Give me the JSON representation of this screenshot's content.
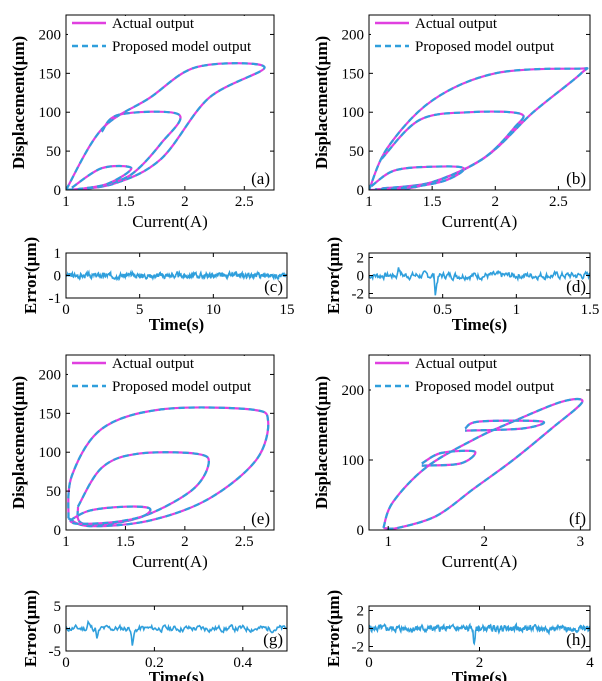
{
  "panels": [
    {
      "id": "a",
      "kind": "hysteresis",
      "tag": "(a)",
      "xlabel": "Current(A)",
      "ylabel": "Displacement(μm)",
      "xlim": [
        1,
        2.75
      ],
      "ylim": [
        0,
        225
      ],
      "xticks": [
        {
          "v": 1,
          "t": "1"
        },
        {
          "v": 1.5,
          "t": "1.5"
        },
        {
          "v": 2,
          "t": "2"
        },
        {
          "v": 2.5,
          "t": "2.5"
        }
      ],
      "yticks": [
        {
          "v": 0,
          "t": "0"
        },
        {
          "v": 50,
          "t": "50"
        },
        {
          "v": 100,
          "t": "100"
        },
        {
          "v": 150,
          "t": "150"
        },
        {
          "v": 200,
          "t": "200"
        }
      ],
      "legend": [
        "Actual output",
        "Proposed model output"
      ],
      "loops": [
        [
          [
            1,
            0
          ],
          [
            1.3,
            78
          ],
          [
            1.7,
            118
          ],
          [
            2.1,
            158
          ],
          [
            2.67,
            158
          ],
          [
            2.2,
            118
          ],
          [
            1.8,
            40
          ],
          [
            1.4,
            8
          ],
          [
            1,
            0
          ]
        ],
        [
          [
            1.3,
            75
          ],
          [
            1.45,
            97
          ],
          [
            1.95,
            97
          ],
          [
            1.8,
            60
          ],
          [
            1.55,
            20
          ],
          [
            1.3,
            5
          ]
        ],
        [
          [
            1.05,
            3
          ],
          [
            1.3,
            28
          ],
          [
            1.55,
            28
          ],
          [
            1.35,
            8
          ],
          [
            1.1,
            1
          ]
        ]
      ]
    },
    {
      "id": "b",
      "kind": "hysteresis",
      "tag": "(b)",
      "xlabel": "Current(A)",
      "ylabel": "Displacement(μm)",
      "xlim": [
        1,
        2.75
      ],
      "ylim": [
        0,
        225
      ],
      "xticks": [
        {
          "v": 1,
          "t": "1"
        },
        {
          "v": 1.5,
          "t": "1.5"
        },
        {
          "v": 2,
          "t": "2"
        },
        {
          "v": 2.5,
          "t": "2.5"
        }
      ],
      "yticks": [
        {
          "v": 0,
          "t": "0"
        },
        {
          "v": 50,
          "t": "50"
        },
        {
          "v": 100,
          "t": "100"
        },
        {
          "v": 150,
          "t": "150"
        },
        {
          "v": 200,
          "t": "200"
        }
      ],
      "legend": [
        "Actual output",
        "Proposed model output"
      ],
      "loops": [
        [
          [
            1,
            0
          ],
          [
            1.15,
            55
          ],
          [
            1.5,
            115
          ],
          [
            2.0,
            150
          ],
          [
            2.65,
            156
          ],
          [
            2.68,
            150
          ],
          [
            2.3,
            100
          ],
          [
            1.9,
            40
          ],
          [
            1.4,
            5
          ],
          [
            1,
            0
          ]
        ],
        [
          [
            1.1,
            40
          ],
          [
            1.4,
            90
          ],
          [
            1.8,
            100
          ],
          [
            2.2,
            98
          ],
          [
            2.15,
            80
          ],
          [
            1.9,
            40
          ],
          [
            1.5,
            10
          ],
          [
            1.1,
            2
          ]
        ],
        [
          [
            1.02,
            5
          ],
          [
            1.2,
            25
          ],
          [
            1.5,
            30
          ],
          [
            1.75,
            28
          ],
          [
            1.6,
            12
          ],
          [
            1.3,
            3
          ],
          [
            1.05,
            1
          ]
        ]
      ]
    },
    {
      "id": "c",
      "kind": "error",
      "tag": "(c)",
      "xlabel": "Time(s)",
      "ylabel": "Error(μm)",
      "xlim": [
        0,
        15
      ],
      "ylim": [
        -1,
        1
      ],
      "xticks": [
        {
          "v": 0,
          "t": "0"
        },
        {
          "v": 5,
          "t": "5"
        },
        {
          "v": 10,
          "t": "10"
        },
        {
          "v": 15,
          "t": "15"
        }
      ],
      "yticks": [
        {
          "v": -1,
          "t": "-1"
        },
        {
          "v": 0,
          "t": "0"
        },
        {
          "v": 1,
          "t": "1"
        }
      ],
      "signal": {
        "n": 600,
        "amp": 0.18,
        "spikes": [],
        "seed": 3
      }
    },
    {
      "id": "d",
      "kind": "error",
      "tag": "(d)",
      "xlabel": "Time(s)",
      "ylabel": "Error(μm)",
      "xlim": [
        0,
        1.5
      ],
      "ylim": [
        -2.5,
        2.5
      ],
      "xticks": [
        {
          "v": 0,
          "t": "0"
        },
        {
          "v": 0.5,
          "t": "0.5"
        },
        {
          "v": 1,
          "t": "1"
        },
        {
          "v": 1.5,
          "t": "1.5"
        }
      ],
      "yticks": [
        {
          "v": -2,
          "t": "-2"
        },
        {
          "v": 0,
          "t": "0"
        },
        {
          "v": 2,
          "t": "2"
        }
      ],
      "signal": {
        "n": 300,
        "amp": 0.6,
        "spikes": [
          [
            0.45,
            -2.2
          ],
          [
            0.2,
            0.9
          ]
        ],
        "seed": 7
      }
    },
    {
      "id": "e",
      "kind": "hysteresis",
      "tag": "(e)",
      "xlabel": "Current(A)",
      "ylabel": "Displacement(μm)",
      "xlim": [
        1,
        2.75
      ],
      "ylim": [
        0,
        225
      ],
      "xticks": [
        {
          "v": 1,
          "t": "1"
        },
        {
          "v": 1.5,
          "t": "1.5"
        },
        {
          "v": 2,
          "t": "2"
        },
        {
          "v": 2.5,
          "t": "2.5"
        }
      ],
      "yticks": [
        {
          "v": 0,
          "t": "0"
        },
        {
          "v": 50,
          "t": "50"
        },
        {
          "v": 100,
          "t": "100"
        },
        {
          "v": 150,
          "t": "150"
        },
        {
          "v": 200,
          "t": "200"
        }
      ],
      "legend": [
        "Actual output",
        "Proposed model output"
      ],
      "loops": [
        [
          [
            1.02,
            15
          ],
          [
            1.05,
            70
          ],
          [
            1.3,
            130
          ],
          [
            1.8,
            155
          ],
          [
            2.55,
            155
          ],
          [
            2.7,
            140
          ],
          [
            2.6,
            90
          ],
          [
            2.2,
            40
          ],
          [
            1.7,
            12
          ],
          [
            1.2,
            5
          ],
          [
            1.02,
            15
          ]
        ],
        [
          [
            1.1,
            30
          ],
          [
            1.3,
            80
          ],
          [
            1.6,
            98
          ],
          [
            2.1,
            98
          ],
          [
            2.2,
            85
          ],
          [
            2.05,
            50
          ],
          [
            1.6,
            15
          ],
          [
            1.15,
            8
          ],
          [
            1.1,
            30
          ]
        ],
        [
          [
            1.03,
            12
          ],
          [
            1.2,
            25
          ],
          [
            1.5,
            30
          ],
          [
            1.7,
            28
          ],
          [
            1.65,
            18
          ],
          [
            1.4,
            10
          ],
          [
            1.1,
            8
          ],
          [
            1.03,
            12
          ]
        ]
      ]
    },
    {
      "id": "f",
      "kind": "hysteresis",
      "tag": "(f)",
      "xlabel": "Current(A)",
      "ylabel": "Displacement(μm)",
      "xlim": [
        0.8,
        3.1
      ],
      "ylim": [
        0,
        250
      ],
      "xticks": [
        {
          "v": 1,
          "t": "1"
        },
        {
          "v": 2,
          "t": "2"
        },
        {
          "v": 3,
          "t": "3"
        }
      ],
      "yticks": [
        {
          "v": 0,
          "t": "0"
        },
        {
          "v": 100,
          "t": "100"
        },
        {
          "v": 200,
          "t": "200"
        }
      ],
      "legend": [
        "Actual output",
        "Proposed model output"
      ],
      "loops": [
        [
          [
            0.95,
            3
          ],
          [
            1.05,
            40
          ],
          [
            1.4,
            90
          ],
          [
            1.9,
            130
          ],
          [
            2.3,
            155
          ],
          [
            2.8,
            183
          ],
          [
            3.02,
            183
          ],
          [
            2.7,
            145
          ],
          [
            2.3,
            100
          ],
          [
            1.9,
            60
          ],
          [
            1.5,
            20
          ],
          [
            1.1,
            3
          ],
          [
            0.95,
            3
          ]
        ],
        [
          [
            1.35,
            95
          ],
          [
            1.55,
            110
          ],
          [
            1.9,
            112
          ],
          [
            1.75,
            95
          ],
          [
            1.35,
            92
          ]
        ],
        [
          [
            1.8,
            145
          ],
          [
            1.95,
            155
          ],
          [
            2.6,
            155
          ],
          [
            2.4,
            145
          ],
          [
            1.8,
            142
          ]
        ]
      ]
    },
    {
      "id": "g",
      "kind": "error",
      "tag": "(g)",
      "xlabel": "Time(s)",
      "ylabel": "Error(μm)",
      "xlim": [
        0,
        0.5
      ],
      "ylim": [
        -5,
        5
      ],
      "xticks": [
        {
          "v": 0,
          "t": "0"
        },
        {
          "v": 0.2,
          "t": "0.2"
        },
        {
          "v": 0.4,
          "t": "0.4"
        }
      ],
      "yticks": [
        {
          "v": -5,
          "t": "-5"
        },
        {
          "v": 0,
          "t": "0"
        },
        {
          "v": 5,
          "t": "5"
        }
      ],
      "signal": {
        "n": 250,
        "amp": 1.1,
        "spikes": [
          [
            0.15,
            -3.8
          ],
          [
            0.07,
            -2.2
          ],
          [
            0.05,
            1.5
          ]
        ],
        "seed": 11
      }
    },
    {
      "id": "h",
      "kind": "error",
      "tag": "(h)",
      "xlabel": "Time(s)",
      "ylabel": "Error(μm)",
      "xlim": [
        0,
        4
      ],
      "ylim": [
        -2.5,
        2.5
      ],
      "xticks": [
        {
          "v": 0,
          "t": "0"
        },
        {
          "v": 2,
          "t": "2"
        },
        {
          "v": 4,
          "t": "4"
        }
      ],
      "yticks": [
        {
          "v": -2,
          "t": "-2"
        },
        {
          "v": 0,
          "t": "0"
        },
        {
          "v": 2,
          "t": "2"
        }
      ],
      "signal": {
        "n": 500,
        "amp": 0.55,
        "spikes": [
          [
            1.9,
            -1.8
          ]
        ],
        "seed": 5
      }
    }
  ],
  "chart_data": [
    {
      "type": "line",
      "panel": "a",
      "xlabel": "Current(A)",
      "ylabel": "Displacement(μm)",
      "xlim": [
        1,
        2.75
      ],
      "ylim": [
        0,
        225
      ],
      "series": [
        {
          "name": "Actual output"
        },
        {
          "name": "Proposed model output"
        }
      ],
      "legend_placement": "top-right"
    },
    {
      "type": "line",
      "panel": "b",
      "xlabel": "Current(A)",
      "ylabel": "Displacement(μm)",
      "xlim": [
        1,
        2.75
      ],
      "ylim": [
        0,
        225
      ],
      "series": [
        {
          "name": "Actual output"
        },
        {
          "name": "Proposed model output"
        }
      ],
      "legend_placement": "top-right"
    },
    {
      "type": "line",
      "panel": "c",
      "xlabel": "Time(s)",
      "ylabel": "Error(μm)",
      "xlim": [
        0,
        15
      ],
      "ylim": [
        -1,
        1
      ]
    },
    {
      "type": "line",
      "panel": "d",
      "xlabel": "Time(s)",
      "ylabel": "Error(μm)",
      "xlim": [
        0,
        1.5
      ],
      "ylim": [
        -2.5,
        2.5
      ]
    },
    {
      "type": "line",
      "panel": "e",
      "xlabel": "Current(A)",
      "ylabel": "Displacement(μm)",
      "xlim": [
        1,
        2.75
      ],
      "ylim": [
        0,
        225
      ],
      "series": [
        {
          "name": "Actual output"
        },
        {
          "name": "Proposed model output"
        }
      ],
      "legend_placement": "top-right"
    },
    {
      "type": "line",
      "panel": "f",
      "xlabel": "Current(A)",
      "ylabel": "Displacement(μm)",
      "xlim": [
        0.8,
        3.1
      ],
      "ylim": [
        0,
        250
      ],
      "series": [
        {
          "name": "Actual output"
        },
        {
          "name": "Proposed model output"
        }
      ],
      "legend_placement": "top-right"
    },
    {
      "type": "line",
      "panel": "g",
      "xlabel": "Time(s)",
      "ylabel": "Error(μm)",
      "xlim": [
        0,
        0.5
      ],
      "ylim": [
        -5,
        5
      ]
    },
    {
      "type": "line",
      "panel": "h",
      "xlabel": "Time(s)",
      "ylabel": "Error(μm)",
      "xlim": [
        0,
        4
      ],
      "ylim": [
        -2.5,
        2.5
      ]
    }
  ],
  "colors": {
    "actual": "#e040e0",
    "model": "#2f9fdc",
    "axis": "#000000"
  }
}
